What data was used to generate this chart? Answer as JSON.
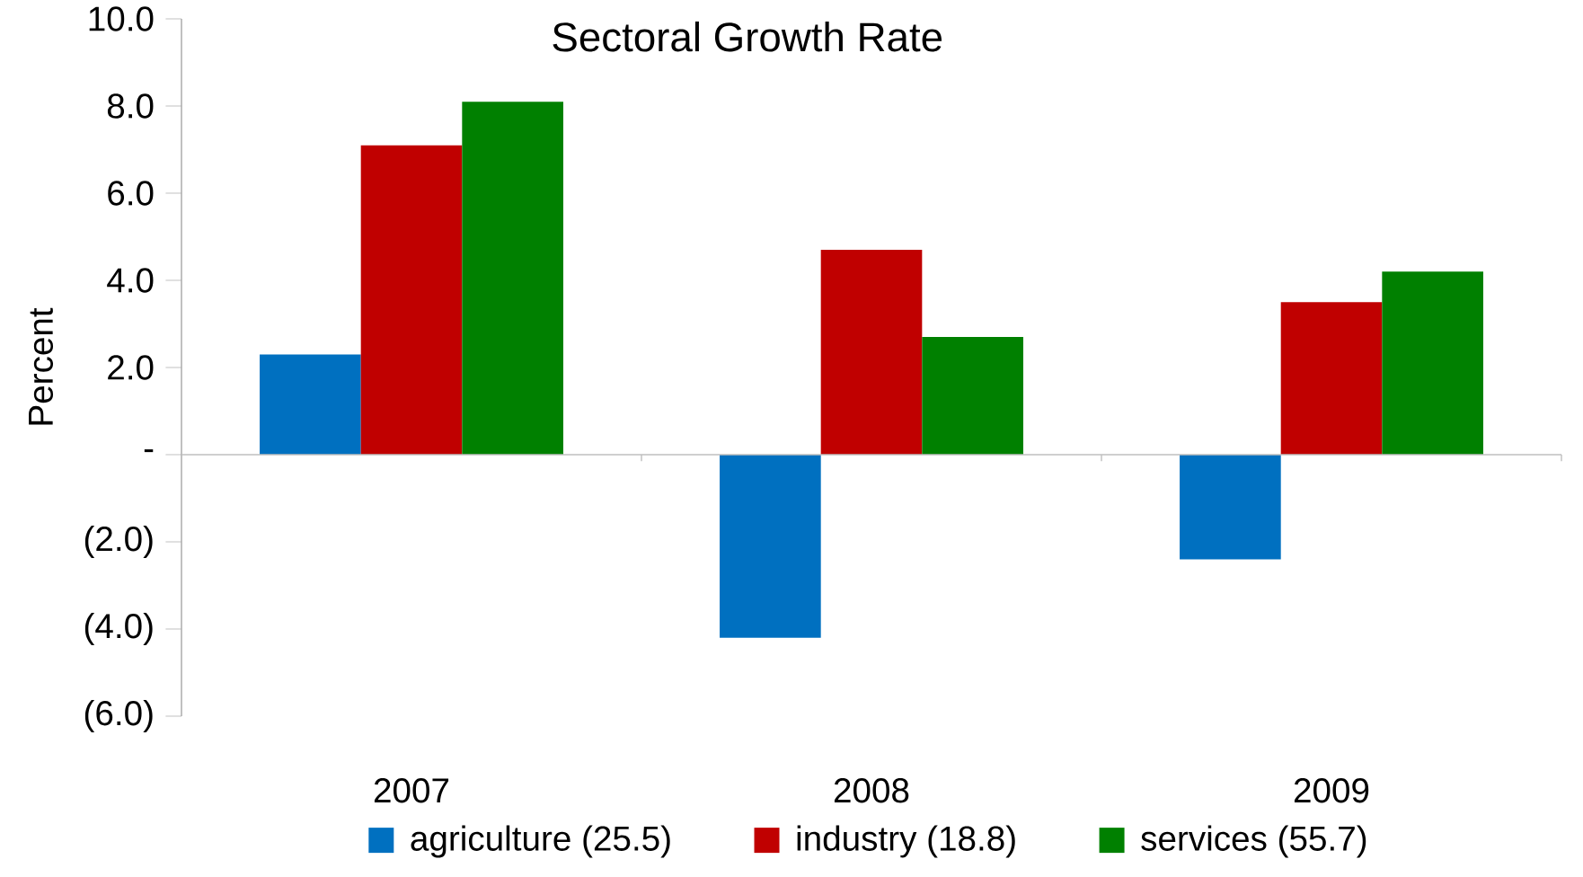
{
  "chart_data": {
    "type": "bar",
    "title": "Sectoral Growth Rate",
    "ylabel": "Percent",
    "categories": [
      "2007",
      "2008",
      "2009"
    ],
    "series": [
      {
        "name": "agriculture (25.5)",
        "color": "#0070c0",
        "values": [
          2.3,
          -4.2,
          -2.4
        ]
      },
      {
        "name": "industry (18.8)",
        "color": "#c00000",
        "values": [
          7.1,
          4.7,
          3.5
        ]
      },
      {
        "name": "services (55.7)",
        "color": "#008000",
        "values": [
          8.1,
          2.7,
          4.2
        ]
      }
    ],
    "ylim": [
      -6,
      10
    ],
    "yticks": [
      {
        "value": -6,
        "label": "(6.0)"
      },
      {
        "value": -4,
        "label": "(4.0)"
      },
      {
        "value": -2,
        "label": "(2.0)"
      },
      {
        "value": 0,
        "label": "-"
      },
      {
        "value": 2,
        "label": "2.0"
      },
      {
        "value": 4,
        "label": "4.0"
      },
      {
        "value": 6,
        "label": "6.0"
      },
      {
        "value": 8,
        "label": "8.0"
      },
      {
        "value": 10,
        "label": "10.0"
      }
    ],
    "ref_lines": [
      {
        "axis": "y",
        "value": 0,
        "color": "#bfbfbf"
      }
    ],
    "grid": false,
    "legend": "bottom"
  }
}
